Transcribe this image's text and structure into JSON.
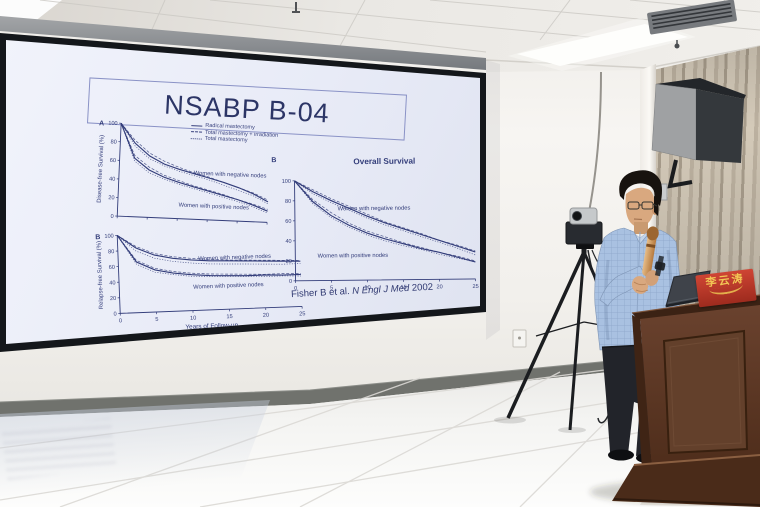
{
  "slide": {
    "title": "NSABP B-04",
    "legend": [
      {
        "label": "Radical mastectomy",
        "dash": "solid"
      },
      {
        "label": "Total mastectomy + irradiation",
        "dash": "long-dash"
      },
      {
        "label": "Total mastectomy",
        "dash": "short-dash"
      }
    ],
    "citation": {
      "authors": "Fisher B et al.",
      "journal": "N Engl J Med",
      "year": "2002"
    }
  },
  "podium": {
    "nameplate_text": "李云涛"
  },
  "colors": {
    "slide_ink": "#333d7a",
    "slide_bg": "#eaedf8",
    "screen_bezel": "#14171b",
    "curtain": "#c9bfae",
    "speaker": "#34383c",
    "wood": "#5e3a27",
    "nameplate_red": "#b5362a",
    "nameplate_gold": "#f0c458",
    "shirt": "#a9c1e1",
    "microphone": "#cf9a5c",
    "floor": "#f1efec",
    "wall": "#f3f1ed",
    "ceiling": "#e7e4df"
  },
  "chart_data": [
    {
      "type": "line",
      "panel": "A",
      "title": "",
      "ylabel": "Disease-free Survival (%)",
      "xlabel": "",
      "x": [
        0,
        2.5,
        5,
        7.5,
        10,
        12.5,
        15,
        17.5,
        20,
        22.5,
        25
      ],
      "xlim": [
        0,
        25
      ],
      "ylim": [
        0,
        100
      ],
      "xticks": [
        0,
        5,
        10,
        15,
        20,
        25
      ],
      "yticks": [
        0,
        20,
        40,
        60,
        80,
        100
      ],
      "show_xtick_labels": false,
      "series": [
        {
          "name": "Radical mastectomy (negative nodes)",
          "group": "negative nodes",
          "dash": "solid",
          "values": [
            100,
            79,
            66,
            58,
            53,
            49,
            45,
            41,
            36,
            30,
            22
          ]
        },
        {
          "name": "Total mastectomy + irradiation (negative nodes)",
          "group": "negative nodes",
          "dash": "long-dash",
          "values": [
            100,
            82,
            69,
            61,
            55,
            50,
            46,
            41,
            36,
            31,
            24
          ]
        },
        {
          "name": "Total mastectomy (negative nodes)",
          "group": "negative nodes",
          "dash": "short-dash",
          "values": [
            100,
            76,
            63,
            56,
            51,
            47,
            43,
            38,
            33,
            28,
            20
          ]
        },
        {
          "name": "Radical mastectomy (positive nodes)",
          "group": "positive nodes",
          "dash": "solid",
          "values": [
            100,
            63,
            51,
            44,
            39,
            35,
            31,
            27,
            23,
            18,
            12
          ]
        },
        {
          "name": "Total mastectomy + irradiation (positive nodes)",
          "group": "positive nodes",
          "dash": "long-dash",
          "values": [
            100,
            66,
            54,
            46,
            41,
            36,
            32,
            28,
            23,
            19,
            14
          ]
        },
        {
          "name": "Total mastectomy (positive nodes)",
          "group": "positive nodes",
          "dash": "short-dash",
          "values": [
            100,
            60,
            48,
            42,
            37,
            33,
            29,
            25,
            21,
            16,
            10
          ]
        }
      ],
      "annotations": [
        {
          "text": "Women with negative nodes",
          "x": 18.5,
          "y": 48
        },
        {
          "text": "Women with positive nodes",
          "x": 16,
          "y": 13
        }
      ]
    },
    {
      "type": "line",
      "panel": "B",
      "title": "Overall Survival",
      "ylabel": "",
      "xlabel": "",
      "x": [
        0,
        2.5,
        5,
        7.5,
        10,
        12.5,
        15,
        17.5,
        20,
        22.5,
        25
      ],
      "xlim": [
        0,
        25
      ],
      "ylim": [
        0,
        100
      ],
      "xticks": [
        0,
        5,
        10,
        15,
        20,
        25
      ],
      "yticks": [
        0,
        20,
        40,
        60,
        80,
        100
      ],
      "show_xtick_labels": true,
      "series": [
        {
          "name": "Radical mastectomy (negative nodes)",
          "group": "negative nodes",
          "dash": "solid",
          "values": [
            100,
            89,
            80,
            72,
            64,
            57,
            51,
            45,
            39,
            33,
            27
          ]
        },
        {
          "name": "Total mastectomy + irradiation (negative nodes)",
          "group": "negative nodes",
          "dash": "long-dash",
          "values": [
            100,
            91,
            82,
            74,
            66,
            58,
            52,
            46,
            39,
            34,
            28
          ]
        },
        {
          "name": "Total mastectomy (negative nodes)",
          "group": "negative nodes",
          "dash": "short-dash",
          "values": [
            100,
            87,
            78,
            70,
            62,
            55,
            49,
            43,
            37,
            31,
            24
          ]
        },
        {
          "name": "Radical mastectomy (positive nodes)",
          "group": "positive nodes",
          "dash": "solid",
          "values": [
            100,
            79,
            65,
            55,
            47,
            41,
            36,
            31,
            27,
            22,
            17
          ]
        },
        {
          "name": "Total mastectomy + irradiation (positive nodes)",
          "group": "positive nodes",
          "dash": "long-dash",
          "values": [
            100,
            81,
            68,
            57,
            49,
            43,
            37,
            32,
            27,
            23,
            18
          ]
        },
        {
          "name": "Total mastectomy (positive nodes)",
          "group": "positive nodes",
          "dash": "short-dash",
          "values": [
            100,
            77,
            63,
            53,
            45,
            39,
            34,
            30,
            25,
            21,
            17
          ]
        }
      ],
      "annotations": [
        {
          "text": "Women with negative nodes",
          "x": 11,
          "y": 70
        },
        {
          "text": "Women with positive nodes",
          "x": 8,
          "y": 23
        }
      ]
    },
    {
      "type": "line",
      "panel": "B",
      "title": "",
      "ylabel": "Relapse-free Survival (%)",
      "xlabel": "Years of Follow-up",
      "x": [
        0,
        2.5,
        5,
        7.5,
        10,
        12.5,
        15,
        17.5,
        20,
        22.5,
        25
      ],
      "xlim": [
        0,
        25
      ],
      "ylim": [
        0,
        100
      ],
      "xticks": [
        0,
        5,
        10,
        15,
        20,
        25
      ],
      "yticks": [
        0,
        20,
        40,
        60,
        80,
        100
      ],
      "show_xtick_labels": true,
      "series": [
        {
          "name": "Radical mastectomy (negative nodes)",
          "group": "negative nodes",
          "dash": "solid",
          "values": [
            100,
            83,
            73,
            68,
            65,
            63,
            62,
            61,
            60,
            59,
            58
          ]
        },
        {
          "name": "Total mastectomy + irradiation (negative nodes)",
          "group": "negative nodes",
          "dash": "long-dash",
          "values": [
            100,
            85,
            75,
            70,
            67,
            65,
            63,
            62,
            61,
            60,
            59
          ]
        },
        {
          "name": "Total mastectomy (negative nodes)",
          "group": "negative nodes",
          "dash": "short-dash",
          "values": [
            100,
            79,
            69,
            64,
            61,
            59,
            58,
            57,
            56,
            55,
            55
          ]
        },
        {
          "name": "Radical mastectomy (positive nodes)",
          "group": "positive nodes",
          "dash": "solid",
          "values": [
            100,
            65,
            54,
            49,
            46,
            44,
            43,
            42,
            42,
            41,
            41
          ]
        },
        {
          "name": "Total mastectomy + irradiation (positive nodes)",
          "group": "positive nodes",
          "dash": "long-dash",
          "values": [
            100,
            67,
            56,
            51,
            48,
            46,
            45,
            44,
            43,
            43,
            42
          ]
        },
        {
          "name": "Total mastectomy (positive nodes)",
          "group": "positive nodes",
          "dash": "short-dash",
          "values": [
            100,
            62,
            51,
            47,
            44,
            43,
            42,
            41,
            40,
            40,
            39
          ]
        }
      ],
      "annotations": [
        {
          "text": "Women with negative nodes",
          "x": 16,
          "y": 64
        },
        {
          "text": "Women with positive nodes",
          "x": 15,
          "y": 28
        }
      ]
    }
  ]
}
